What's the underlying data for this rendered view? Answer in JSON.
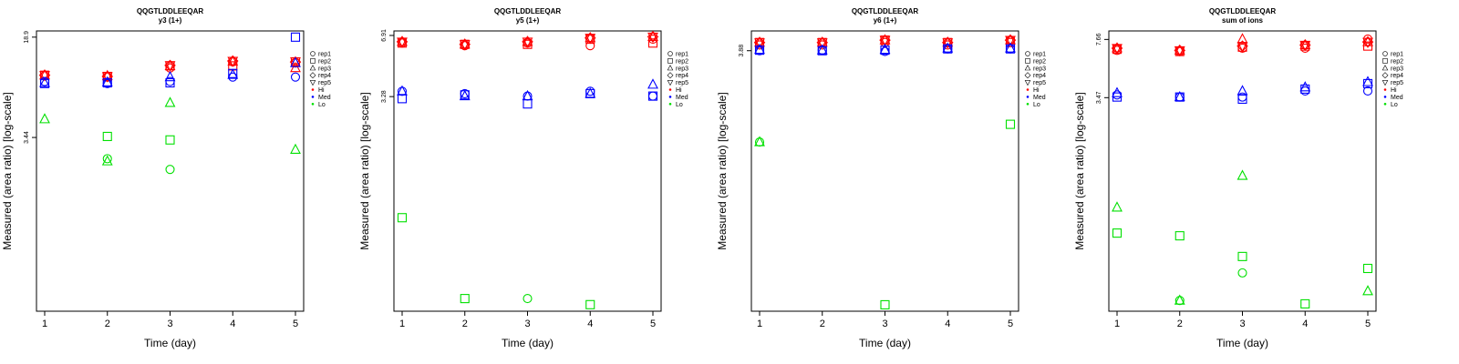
{
  "chart_data": [
    {
      "type": "scatter",
      "title": "QQGTLDDLEEQAR",
      "subtitle": "y3 (1+)",
      "xlabel": "Time (day)",
      "ylabel": "Measured (area ratio) [log-scale]",
      "x_ticks": [
        "1",
        "2",
        "3",
        "4",
        "5"
      ],
      "y_ticks": [
        "3.44",
        "18.9"
      ],
      "legend": [
        "rep1",
        "rep2",
        "rep3",
        "rep4",
        "rep5",
        "Hi",
        "Med",
        "Lo"
      ],
      "series": [
        {
          "group": "Hi",
          "rep": "rep1",
          "color": "#ff0000",
          "points": [
            [
              1,
              9.8
            ],
            [
              2,
              9.6
            ],
            [
              3,
              11.2
            ],
            [
              4,
              12.4
            ],
            [
              5,
              12.2
            ]
          ]
        },
        {
          "group": "Hi",
          "rep": "rep2",
          "color": "#ff0000",
          "points": [
            [
              1,
              9.9
            ],
            [
              2,
              9.7
            ],
            [
              3,
              11.6
            ],
            [
              4,
              11.6
            ],
            [
              5,
              12.4
            ]
          ]
        },
        {
          "group": "Hi",
          "rep": "rep3",
          "color": "#ff0000",
          "points": [
            [
              1,
              9.9
            ],
            [
              2,
              9.8
            ],
            [
              3,
              11.6
            ],
            [
              4,
              12.5
            ],
            [
              5,
              11.2
            ]
          ]
        },
        {
          "group": "Hi",
          "rep": "rep4",
          "color": "#ff0000",
          "points": [
            [
              1,
              9.9
            ],
            [
              2,
              9.7
            ],
            [
              3,
              11.7
            ],
            [
              4,
              12.6
            ],
            [
              5,
              12.4
            ]
          ]
        },
        {
          "group": "Hi",
          "rep": "rep5",
          "color": "#ff0000",
          "points": [
            [
              1,
              9.9
            ],
            [
              2,
              9.7
            ],
            [
              3,
              11.7
            ],
            [
              4,
              12.6
            ],
            [
              5,
              12.5
            ]
          ]
        },
        {
          "group": "Med",
          "rep": "rep1",
          "color": "#0000ff",
          "points": [
            [
              1,
              8.9
            ],
            [
              2,
              8.6
            ],
            [
              3,
              8.9
            ],
            [
              4,
              9.6
            ],
            [
              5,
              9.6
            ]
          ]
        },
        {
          "group": "Med",
          "rep": "rep2",
          "color": "#0000ff",
          "points": [
            [
              1,
              8.6
            ],
            [
              2,
              8.7
            ],
            [
              3,
              8.7
            ],
            [
              4,
              10.2
            ],
            [
              5,
              18.9
            ]
          ]
        },
        {
          "group": "Med",
          "rep": "rep3",
          "color": "#0000ff",
          "points": [
            [
              1,
              8.7
            ],
            [
              2,
              8.8
            ],
            [
              3,
              9.6
            ],
            [
              4,
              10.0
            ],
            [
              5,
              12.2
            ]
          ]
        },
        {
          "group": "Lo",
          "rep": "rep1",
          "color": "#00e000",
          "points": [
            [
              2,
              2.4
            ],
            [
              3,
              2.0
            ]
          ]
        },
        {
          "group": "Lo",
          "rep": "rep2",
          "color": "#00e000",
          "points": [
            [
              2,
              3.5
            ],
            [
              3,
              3.3
            ]
          ]
        },
        {
          "group": "Lo",
          "rep": "rep3",
          "color": "#00e000",
          "points": [
            [
              1,
              4.7
            ],
            [
              2,
              2.3
            ],
            [
              3,
              6.2
            ],
            [
              5,
              2.8
            ]
          ]
        }
      ]
    },
    {
      "type": "scatter",
      "title": "QQGTLDDLEEQAR",
      "subtitle": "y5 (1+)",
      "xlabel": "Time (day)",
      "ylabel": "Measured (area ratio) [log-scale]",
      "x_ticks": [
        "1",
        "2",
        "3",
        "4",
        "5"
      ],
      "y_ticks": [
        "3.28",
        "6.91"
      ],
      "legend": [
        "rep1",
        "rep2",
        "rep3",
        "rep4",
        "rep5",
        "Hi",
        "Med",
        "Lo"
      ],
      "series": [
        {
          "group": "Hi",
          "rep": "rep1",
          "color": "#ff0000",
          "points": [
            [
              1,
              6.3
            ],
            [
              2,
              6.1
            ],
            [
              3,
              6.3
            ],
            [
              4,
              6.1
            ],
            [
              5,
              6.6
            ]
          ]
        },
        {
          "group": "Hi",
          "rep": "rep2",
          "color": "#ff0000",
          "points": [
            [
              1,
              6.3
            ],
            [
              2,
              6.2
            ],
            [
              3,
              6.2
            ],
            [
              4,
              6.6
            ],
            [
              5,
              6.3
            ]
          ]
        },
        {
          "group": "Hi",
          "rep": "rep3",
          "color": "#ff0000",
          "points": [
            [
              1,
              6.4
            ],
            [
              2,
              6.2
            ],
            [
              3,
              6.4
            ],
            [
              4,
              6.7
            ],
            [
              5,
              6.8
            ]
          ]
        },
        {
          "group": "Hi",
          "rep": "rep4",
          "color": "#ff0000",
          "points": [
            [
              1,
              6.4
            ],
            [
              2,
              6.2
            ],
            [
              3,
              6.4
            ],
            [
              4,
              6.7
            ],
            [
              5,
              6.8
            ]
          ]
        },
        {
          "group": "Hi",
          "rep": "rep5",
          "color": "#ff0000",
          "points": [
            [
              1,
              6.4
            ],
            [
              2,
              6.2
            ],
            [
              3,
              6.4
            ],
            [
              4,
              6.7
            ],
            [
              5,
              6.8
            ]
          ]
        },
        {
          "group": "Med",
          "rep": "rep1",
          "color": "#0000ff",
          "points": [
            [
              1,
              3.5
            ],
            [
              2,
              3.4
            ],
            [
              3,
              3.3
            ],
            [
              4,
              3.5
            ],
            [
              5,
              3.3
            ]
          ]
        },
        {
          "group": "Med",
          "rep": "rep2",
          "color": "#0000ff",
          "points": [
            [
              1,
              3.2
            ],
            [
              2,
              3.35
            ],
            [
              3,
              3.0
            ],
            [
              4,
              3.4
            ],
            [
              5,
              3.3
            ]
          ]
        },
        {
          "group": "Med",
          "rep": "rep3",
          "color": "#0000ff",
          "points": [
            [
              1,
              3.5
            ],
            [
              2,
              3.3
            ],
            [
              3,
              3.3
            ],
            [
              4,
              3.4
            ],
            [
              5,
              3.8
            ]
          ]
        },
        {
          "group": "Lo",
          "rep": "rep1",
          "color": "#00e000",
          "points": [
            [
              3,
              0.28
            ]
          ]
        },
        {
          "group": "Lo",
          "rep": "rep2",
          "color": "#00e000",
          "points": [
            [
              1,
              0.75
            ],
            [
              2,
              0.28
            ],
            [
              4,
              0.26
            ]
          ]
        }
      ]
    },
    {
      "type": "scatter",
      "title": "QQGTLDDLEEQAR",
      "subtitle": "y6 (1+)",
      "xlabel": "Time (day)",
      "ylabel": "Measured (area ratio) [log-scale]",
      "x_ticks": [
        "1",
        "2",
        "3",
        "4",
        "5"
      ],
      "y_ticks": [
        "3.88"
      ],
      "legend": [
        "rep1",
        "rep2",
        "rep3",
        "rep4",
        "rep5",
        "Hi",
        "Med",
        "Lo"
      ],
      "series": [
        {
          "group": "Hi",
          "rep": "rep1",
          "color": "#ff0000",
          "points": [
            [
              1,
              4.1
            ],
            [
              2,
              4.1
            ],
            [
              3,
              4.2
            ],
            [
              4,
              4.1
            ],
            [
              5,
              4.3
            ]
          ]
        },
        {
          "group": "Hi",
          "rep": "rep2",
          "color": "#ff0000",
          "points": [
            [
              1,
              4.2
            ],
            [
              2,
              4.2
            ],
            [
              3,
              4.3
            ],
            [
              4,
              4.2
            ],
            [
              5,
              4.2
            ]
          ]
        },
        {
          "group": "Hi",
          "rep": "rep3",
          "color": "#ff0000",
          "points": [
            [
              1,
              4.2
            ],
            [
              2,
              4.2
            ],
            [
              3,
              4.3
            ],
            [
              4,
              4.2
            ],
            [
              5,
              4.3
            ]
          ]
        },
        {
          "group": "Hi",
          "rep": "rep4",
          "color": "#ff0000",
          "points": [
            [
              1,
              4.2
            ],
            [
              2,
              4.2
            ],
            [
              3,
              4.3
            ],
            [
              4,
              4.2
            ],
            [
              5,
              4.3
            ]
          ]
        },
        {
          "group": "Hi",
          "rep": "rep5",
          "color": "#ff0000",
          "points": [
            [
              1,
              4.2
            ],
            [
              2,
              4.2
            ],
            [
              3,
              4.3
            ],
            [
              4,
              4.2
            ],
            [
              5,
              4.3
            ]
          ]
        },
        {
          "group": "Med",
          "rep": "rep1",
          "color": "#0000ff",
          "points": [
            [
              1,
              3.88
            ],
            [
              2,
              3.9
            ],
            [
              3,
              3.85
            ],
            [
              4,
              3.95
            ],
            [
              5,
              3.95
            ]
          ]
        },
        {
          "group": "Med",
          "rep": "rep2",
          "color": "#0000ff",
          "points": [
            [
              1,
              3.9
            ],
            [
              2,
              3.88
            ],
            [
              3,
              3.9
            ],
            [
              4,
              3.95
            ],
            [
              5,
              3.95
            ]
          ]
        },
        {
          "group": "Med",
          "rep": "rep3",
          "color": "#0000ff",
          "points": [
            [
              1,
              3.92
            ],
            [
              2,
              3.9
            ],
            [
              3,
              3.92
            ],
            [
              4,
              3.97
            ],
            [
              5,
              3.97
            ]
          ]
        },
        {
          "group": "Lo",
          "rep": "rep1",
          "color": "#00e000",
          "points": [
            [
              1,
              1.6
            ]
          ]
        },
        {
          "group": "Lo",
          "rep": "rep2",
          "color": "#00e000",
          "points": [
            [
              3,
              0.33
            ],
            [
              5,
              1.9
            ]
          ]
        },
        {
          "group": "Lo",
          "rep": "rep3",
          "color": "#00e000",
          "points": [
            [
              1,
              1.6
            ]
          ]
        }
      ]
    },
    {
      "type": "scatter",
      "title": "QQGTLDDLEEQAR",
      "subtitle": "sum of ions",
      "xlabel": "Time (day)",
      "ylabel": "Measured (area ratio) [log-scale]",
      "x_ticks": [
        "1",
        "2",
        "3",
        "4",
        "5"
      ],
      "y_ticks": [
        "3.47",
        "7.66"
      ],
      "legend": [
        "rep1",
        "rep2",
        "rep3",
        "rep4",
        "rep5",
        "Hi",
        "Med",
        "Lo"
      ],
      "series": [
        {
          "group": "Hi",
          "rep": "rep1",
          "color": "#ff0000",
          "points": [
            [
              1,
              6.6
            ],
            [
              2,
              6.5
            ],
            [
              3,
              6.8
            ],
            [
              4,
              6.8
            ],
            [
              5,
              7.7
            ]
          ]
        },
        {
          "group": "Hi",
          "rep": "rep2",
          "color": "#ff0000",
          "points": [
            [
              1,
              6.7
            ],
            [
              2,
              6.5
            ],
            [
              3,
              6.9
            ],
            [
              4,
              7.0
            ],
            [
              5,
              7.0
            ]
          ]
        },
        {
          "group": "Hi",
          "rep": "rep3",
          "color": "#ff0000",
          "points": [
            [
              1,
              6.8
            ],
            [
              2,
              6.6
            ],
            [
              3,
              7.7
            ],
            [
              4,
              7.1
            ],
            [
              5,
              7.4
            ]
          ]
        },
        {
          "group": "Hi",
          "rep": "rep4",
          "color": "#ff0000",
          "points": [
            [
              1,
              6.8
            ],
            [
              2,
              6.6
            ],
            [
              3,
              7.0
            ],
            [
              4,
              7.1
            ],
            [
              5,
              7.4
            ]
          ]
        },
        {
          "group": "Hi",
          "rep": "rep5",
          "color": "#ff0000",
          "points": [
            [
              1,
              6.8
            ],
            [
              2,
              6.6
            ],
            [
              3,
              7.0
            ],
            [
              4,
              7.1
            ],
            [
              5,
              7.4
            ]
          ]
        },
        {
          "group": "Med",
          "rep": "rep1",
          "color": "#0000ff",
          "points": [
            [
              1,
              3.6
            ],
            [
              2,
              3.5
            ],
            [
              3,
              3.5
            ],
            [
              4,
              3.8
            ],
            [
              5,
              3.8
            ]
          ]
        },
        {
          "group": "Med",
          "rep": "rep2",
          "color": "#0000ff",
          "points": [
            [
              1,
              3.5
            ],
            [
              2,
              3.5
            ],
            [
              3,
              3.4
            ],
            [
              4,
              3.9
            ],
            [
              5,
              4.2
            ]
          ]
        },
        {
          "group": "Med",
          "rep": "rep3",
          "color": "#0000ff",
          "points": [
            [
              1,
              3.7
            ],
            [
              2,
              3.5
            ],
            [
              3,
              3.8
            ],
            [
              4,
              4.0
            ],
            [
              5,
              4.3
            ]
          ]
        },
        {
          "group": "Lo",
          "rep": "rep1",
          "color": "#00e000",
          "points": [
            [
              2,
              0.22
            ],
            [
              3,
              0.32
            ]
          ]
        },
        {
          "group": "Lo",
          "rep": "rep2",
          "color": "#00e000",
          "points": [
            [
              1,
              0.55
            ],
            [
              2,
              0.53
            ],
            [
              3,
              0.4
            ],
            [
              4,
              0.21
            ],
            [
              5,
              0.34
            ]
          ]
        },
        {
          "group": "Lo",
          "rep": "rep3",
          "color": "#00e000",
          "points": [
            [
              1,
              0.78
            ],
            [
              2,
              0.22
            ],
            [
              3,
              1.2
            ],
            [
              5,
              0.25
            ]
          ]
        }
      ]
    }
  ]
}
